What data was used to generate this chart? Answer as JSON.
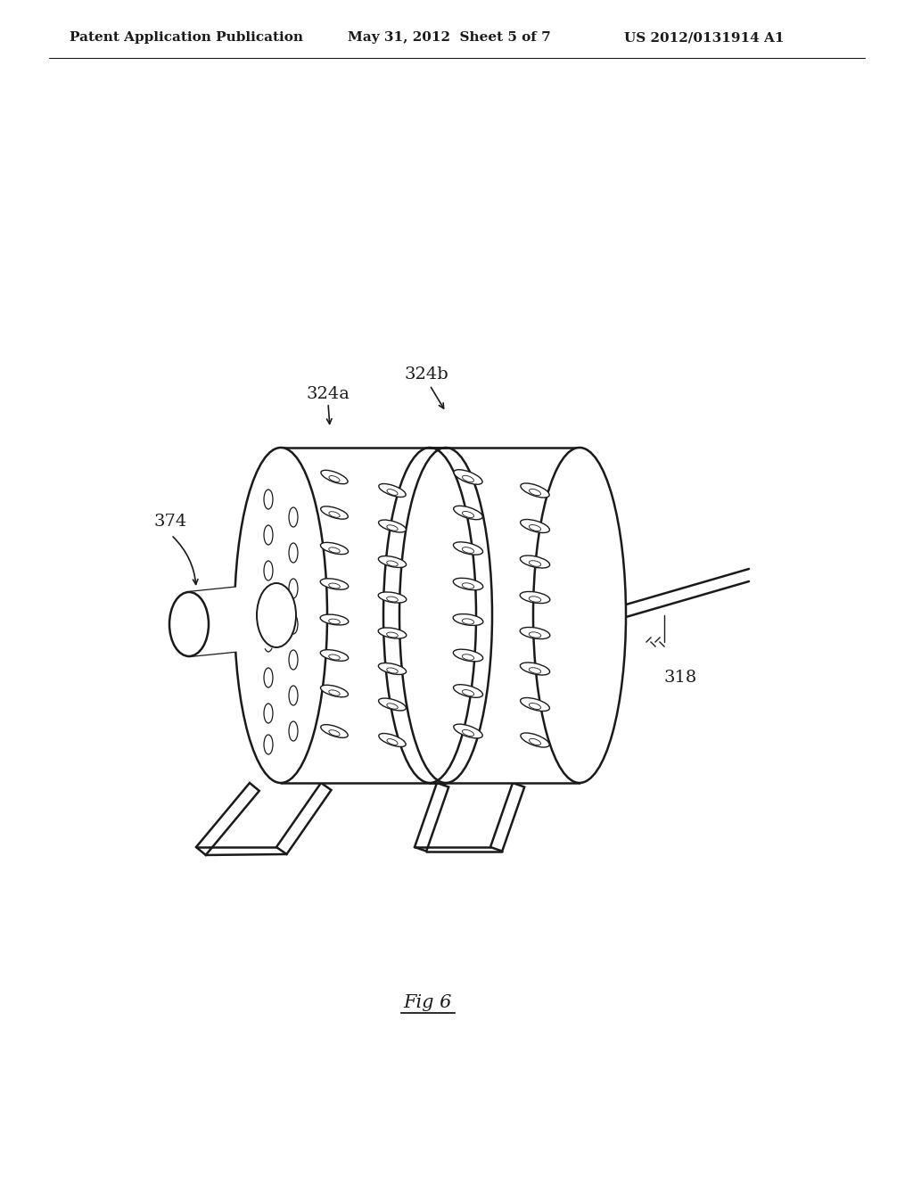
{
  "bg_color": "#ffffff",
  "line_color": "#1a1a1a",
  "header_left": "Patent Application Publication",
  "header_mid": "May 31, 2012  Sheet 5 of 7",
  "header_right": "US 2012/0131914 A1",
  "fig_label": "Fig 6",
  "label_324a": "324a",
  "label_324b": "324b",
  "label_374": "374",
  "label_318": "318",
  "header_fontsize": 11,
  "label_fontsize": 14,
  "fig_label_fontsize": 15
}
